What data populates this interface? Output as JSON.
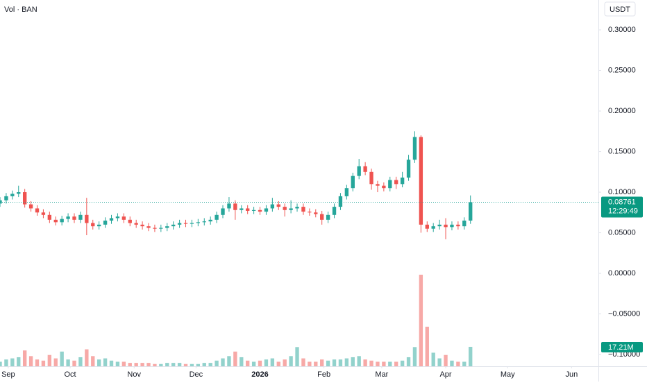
{
  "chart_data": {
    "type": "candlestick",
    "legend_text": "Vol · BAN",
    "currency": "USDT",
    "x": [
      -4,
      -1,
      2,
      5,
      8,
      11,
      14,
      17,
      20,
      23,
      26,
      29,
      32,
      35,
      38,
      41,
      44,
      47,
      50,
      53,
      56,
      59,
      62,
      65,
      68,
      71,
      74,
      77,
      80,
      83,
      86,
      89,
      92,
      95,
      98,
      101,
      104,
      107,
      110,
      113,
      116,
      119,
      122,
      125,
      128,
      131,
      134,
      137,
      140,
      143,
      146,
      149,
      152,
      155,
      158,
      161,
      164,
      167,
      170,
      173,
      176,
      179,
      182,
      185,
      188,
      191,
      194,
      197,
      200,
      203,
      206,
      209,
      212,
      215,
      218,
      221,
      224
    ],
    "open": [
      0.086,
      0.09,
      0.095,
      0.098,
      0.1,
      0.085,
      0.08,
      0.075,
      0.072,
      0.066,
      0.063,
      0.067,
      0.07,
      0.066,
      0.072,
      0.062,
      0.058,
      0.06,
      0.065,
      0.068,
      0.07,
      0.066,
      0.062,
      0.06,
      0.058,
      0.056,
      0.055,
      0.056,
      0.058,
      0.06,
      0.062,
      0.061,
      0.062,
      0.063,
      0.064,
      0.066,
      0.072,
      0.08,
      0.086,
      0.078,
      0.08,
      0.077,
      0.078,
      0.076,
      0.08,
      0.085,
      0.082,
      0.078,
      0.08,
      0.082,
      0.076,
      0.075,
      0.073,
      0.066,
      0.072,
      0.082,
      0.095,
      0.105,
      0.12,
      0.132,
      0.125,
      0.11,
      0.108,
      0.105,
      0.115,
      0.11,
      0.118,
      0.14,
      0.168,
      0.06,
      0.055,
      0.058,
      0.06,
      0.057,
      0.06,
      0.058,
      0.065
    ],
    "high": [
      0.094,
      0.099,
      0.102,
      0.108,
      0.104,
      0.089,
      0.084,
      0.079,
      0.076,
      0.07,
      0.071,
      0.074,
      0.074,
      0.076,
      0.093,
      0.066,
      0.064,
      0.069,
      0.072,
      0.074,
      0.074,
      0.07,
      0.066,
      0.064,
      0.062,
      0.06,
      0.06,
      0.062,
      0.064,
      0.066,
      0.066,
      0.066,
      0.067,
      0.068,
      0.07,
      0.076,
      0.084,
      0.094,
      0.09,
      0.084,
      0.084,
      0.082,
      0.082,
      0.084,
      0.093,
      0.089,
      0.086,
      0.09,
      0.086,
      0.086,
      0.08,
      0.079,
      0.077,
      0.076,
      0.086,
      0.099,
      0.109,
      0.124,
      0.141,
      0.137,
      0.129,
      0.114,
      0.112,
      0.119,
      0.119,
      0.125,
      0.146,
      0.175,
      0.17,
      0.064,
      0.062,
      0.066,
      0.068,
      0.064,
      0.064,
      0.069,
      0.096
    ],
    "low": [
      0.082,
      0.086,
      0.091,
      0.094,
      0.081,
      0.076,
      0.071,
      0.068,
      0.062,
      0.059,
      0.059,
      0.063,
      0.062,
      0.062,
      0.047,
      0.054,
      0.054,
      0.056,
      0.061,
      0.064,
      0.062,
      0.058,
      0.056,
      0.054,
      0.052,
      0.051,
      0.051,
      0.052,
      0.054,
      0.056,
      0.057,
      0.057,
      0.058,
      0.059,
      0.06,
      0.062,
      0.068,
      0.076,
      0.066,
      0.074,
      0.073,
      0.073,
      0.072,
      0.072,
      0.076,
      0.078,
      0.07,
      0.074,
      0.076,
      0.072,
      0.071,
      0.069,
      0.06,
      0.062,
      0.068,
      0.078,
      0.091,
      0.101,
      0.116,
      0.121,
      0.103,
      0.1,
      0.101,
      0.101,
      0.104,
      0.106,
      0.114,
      0.136,
      0.05,
      0.051,
      0.051,
      0.054,
      0.042,
      0.053,
      0.054,
      0.054,
      0.061
    ],
    "close": [
      0.09,
      0.095,
      0.098,
      0.1,
      0.085,
      0.08,
      0.075,
      0.072,
      0.066,
      0.063,
      0.067,
      0.07,
      0.066,
      0.072,
      0.062,
      0.058,
      0.06,
      0.065,
      0.068,
      0.07,
      0.066,
      0.062,
      0.06,
      0.058,
      0.056,
      0.055,
      0.056,
      0.058,
      0.06,
      0.062,
      0.061,
      0.062,
      0.063,
      0.064,
      0.066,
      0.072,
      0.08,
      0.086,
      0.078,
      0.08,
      0.077,
      0.078,
      0.076,
      0.08,
      0.085,
      0.082,
      0.078,
      0.08,
      0.082,
      0.076,
      0.075,
      0.073,
      0.066,
      0.072,
      0.082,
      0.095,
      0.105,
      0.12,
      0.132,
      0.125,
      0.11,
      0.108,
      0.105,
      0.115,
      0.11,
      0.118,
      0.14,
      0.168,
      0.06,
      0.055,
      0.058,
      0.06,
      0.057,
      0.06,
      0.058,
      0.065,
      0.08761
    ],
    "volume": {
      "values": [
        4,
        6,
        7,
        8,
        14,
        9,
        6,
        5,
        10,
        7,
        13,
        6,
        5,
        8,
        15,
        9,
        6,
        7,
        5,
        4,
        4,
        3,
        3,
        3,
        3,
        2,
        2,
        3,
        3,
        3,
        2,
        2,
        2,
        3,
        3,
        5,
        7,
        9,
        13,
        8,
        5,
        4,
        5,
        6,
        7,
        4,
        6,
        9,
        17,
        7,
        4,
        4,
        6,
        5,
        6,
        6,
        7,
        8,
        9,
        6,
        5,
        4,
        4,
        4,
        4,
        5,
        8,
        17,
        81,
        35,
        12,
        7,
        10,
        5,
        4,
        4,
        17.21
      ],
      "last_value_label": "17.21M"
    },
    "up_color": "#26a69a",
    "down_color": "#ef5350",
    "last_price": 0.08761,
    "countdown": "12:29:49",
    "xlim": [
      -4,
      286
    ],
    "xticks": [
      {
        "value": 0,
        "label": "Sep"
      },
      {
        "value": 30,
        "label": "Oct"
      },
      {
        "value": 61,
        "label": "Nov"
      },
      {
        "value": 91,
        "label": "Dec"
      },
      {
        "value": 122,
        "label": "2026"
      },
      {
        "value": 153,
        "label": "Feb"
      },
      {
        "value": 181,
        "label": "Mar"
      },
      {
        "value": 212,
        "label": "Apr"
      },
      {
        "value": 242,
        "label": "May"
      },
      {
        "value": 273,
        "label": "Jun"
      }
    ],
    "ylim": [
      -0.1145,
      0.3368
    ],
    "yticks": [
      {
        "value": 0.3,
        "label": "0.30000"
      },
      {
        "value": 0.25,
        "label": "0.25000"
      },
      {
        "value": 0.2,
        "label": "0.20000"
      },
      {
        "value": 0.15,
        "label": "0.15000"
      },
      {
        "value": 0.1,
        "label": "0.10000"
      },
      {
        "value": 0.05,
        "label": "0.05000"
      },
      {
        "value": 0,
        "label": "0.00000"
      },
      {
        "value": -0.05,
        "label": "−0.05000"
      },
      {
        "value": -0.1,
        "label": "−0.10000"
      }
    ],
    "grid": false
  }
}
